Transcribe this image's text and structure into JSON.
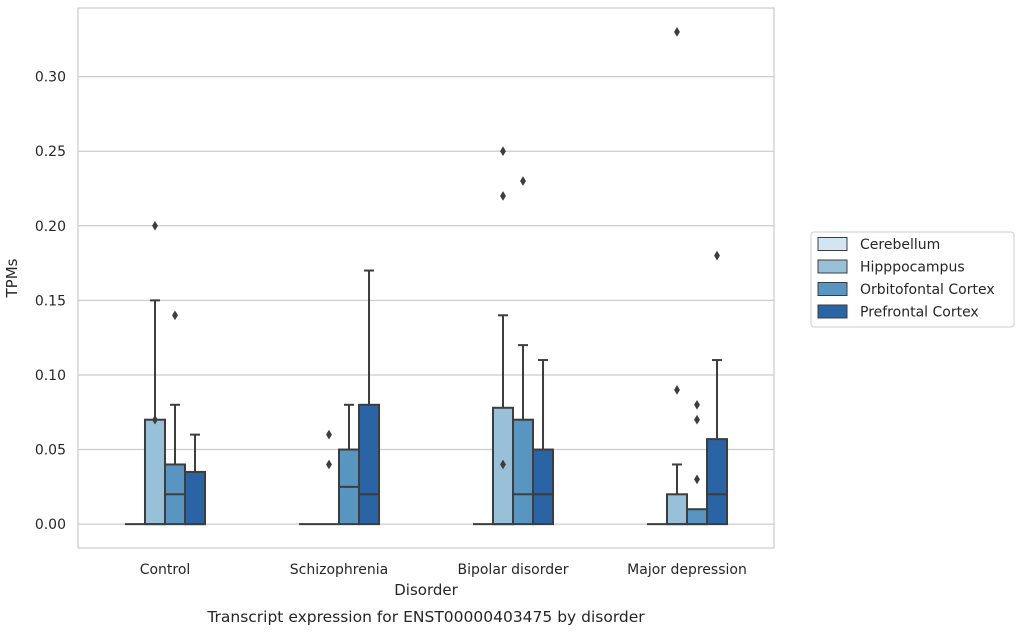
{
  "chart_data": {
    "type": "box",
    "xlabel": "Disorder",
    "ylabel": "TPMs",
    "caption": "Transcript expression for ENST00000403475 by disorder",
    "ylim": [
      -0.016,
      0.346
    ],
    "yticks": [
      0.0,
      0.05,
      0.1,
      0.15,
      0.2,
      0.25,
      0.3
    ],
    "ytick_labels": [
      "0.00",
      "0.05",
      "0.10",
      "0.15",
      "0.20",
      "0.25",
      "0.30"
    ],
    "grid": "horizontal",
    "legend_position": "right",
    "categories": [
      "Control",
      "Schizophrenia",
      "Bipolar disorder",
      "Major depression"
    ],
    "series": [
      {
        "name": "Cerebellum",
        "color": "#d3e4f3",
        "boxes": [
          {
            "min": 0.0,
            "q1": 0.0,
            "median": 0.0,
            "q3": 0.0,
            "max": 0.0,
            "outliers": []
          },
          {
            "min": 0.0,
            "q1": 0.0,
            "median": 0.0,
            "q3": 0.0,
            "max": 0.0,
            "outliers": []
          },
          {
            "min": 0.0,
            "q1": 0.0,
            "median": 0.0,
            "q3": 0.0,
            "max": 0.0,
            "outliers": []
          },
          {
            "min": 0.0,
            "q1": 0.0,
            "median": 0.0,
            "q3": 0.0,
            "max": 0.0,
            "outliers": []
          }
        ]
      },
      {
        "name": "Hipppocampus",
        "color": "#98c1d9",
        "boxes": [
          {
            "min": 0.0,
            "q1": 0.0,
            "median": 0.0,
            "q3": 0.07,
            "max": 0.15,
            "outliers": [
              0.07,
              0.2
            ]
          },
          {
            "min": 0.0,
            "q1": 0.0,
            "median": 0.0,
            "q3": 0.0,
            "max": 0.0,
            "outliers": [
              0.04,
              0.06
            ]
          },
          {
            "min": 0.0,
            "q1": 0.0,
            "median": 0.0,
            "q3": 0.078,
            "max": 0.14,
            "outliers": [
              0.04,
              0.25,
              0.22
            ]
          },
          {
            "min": 0.0,
            "q1": 0.0,
            "median": 0.0,
            "q3": 0.02,
            "max": 0.04,
            "outliers": [
              0.09,
              0.33
            ]
          }
        ]
      },
      {
        "name": "Orbitofontal Cortex",
        "color": "#5896c1",
        "boxes": [
          {
            "min": 0.0,
            "q1": 0.0,
            "median": 0.02,
            "q3": 0.04,
            "max": 0.08,
            "outliers": [
              0.14
            ]
          },
          {
            "min": 0.0,
            "q1": 0.0,
            "median": 0.025,
            "q3": 0.05,
            "max": 0.08,
            "outliers": []
          },
          {
            "min": 0.0,
            "q1": 0.0,
            "median": 0.02,
            "q3": 0.07,
            "max": 0.12,
            "outliers": [
              0.23
            ]
          },
          {
            "min": 0.0,
            "q1": 0.0,
            "median": 0.0,
            "q3": 0.01,
            "max": 0.01,
            "outliers": [
              0.08,
              0.07,
              0.03
            ]
          }
        ]
      },
      {
        "name": "Prefrontal Cortex",
        "color": "#2a64a5",
        "boxes": [
          {
            "min": 0.0,
            "q1": 0.0,
            "median": 0.0,
            "q3": 0.035,
            "max": 0.06,
            "outliers": []
          },
          {
            "min": 0.0,
            "q1": 0.0,
            "median": 0.02,
            "q3": 0.08,
            "max": 0.17,
            "outliers": []
          },
          {
            "min": 0.0,
            "q1": 0.0,
            "median": 0.02,
            "q3": 0.05,
            "max": 0.11,
            "outliers": []
          },
          {
            "min": 0.0,
            "q1": 0.0,
            "median": 0.02,
            "q3": 0.057,
            "max": 0.11,
            "outliers": [
              0.18
            ]
          }
        ]
      }
    ]
  }
}
